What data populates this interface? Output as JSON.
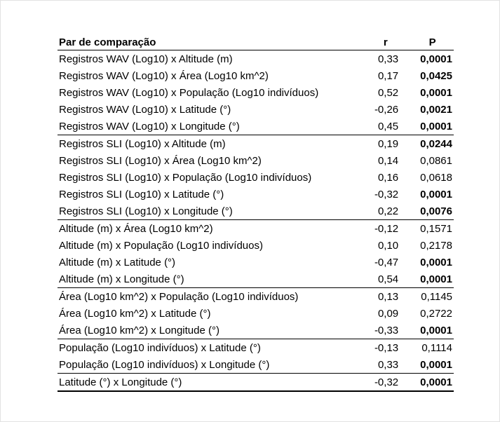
{
  "table": {
    "headers": {
      "pair": "Par de comparação",
      "r": "r",
      "p": "P"
    },
    "rows": [
      {
        "pair": "Registros WAV (Log10) x Altitude (m)",
        "r": "0,33",
        "p": "0,0001",
        "sig": true
      },
      {
        "pair": "Registros WAV (Log10) x Área (Log10 km^2)",
        "r": "0,17",
        "p": "0,0425",
        "sig": true
      },
      {
        "pair": "Registros WAV (Log10) x População (Log10 indivíduos)",
        "r": "0,52",
        "p": "0,0001",
        "sig": true
      },
      {
        "pair": "Registros WAV (Log10) x Latitude (°)",
        "r": "-0,26",
        "p": "0,0021",
        "sig": true
      },
      {
        "pair": "Registros WAV (Log10) x Longitude (°)",
        "r": "0,45",
        "p": "0,0001",
        "sig": true,
        "group_end": true
      },
      {
        "pair": "Registros SLI (Log10) x Altitude (m)",
        "r": "0,19",
        "p": "0,0244",
        "sig": true
      },
      {
        "pair": "Registros SLI (Log10) x Área (Log10 km^2)",
        "r": "0,14",
        "p": "0,0861",
        "sig": false
      },
      {
        "pair": "Registros SLI (Log10) x População (Log10 indivíduos)",
        "r": "0,16",
        "p": "0,0618",
        "sig": false
      },
      {
        "pair": "Registros SLI (Log10) x Latitude (°)",
        "r": "-0,32",
        "p": "0,0001",
        "sig": true
      },
      {
        "pair": "Registros SLI (Log10) x Longitude (°)",
        "r": "0,22",
        "p": "0,0076",
        "sig": true,
        "group_end": true
      },
      {
        "pair": "Altitude (m) x Área (Log10 km^2)",
        "r": "-0,12",
        "p": "0,1571",
        "sig": false
      },
      {
        "pair": "Altitude (m) x População (Log10 indivíduos)",
        "r": "0,10",
        "p": "0,2178",
        "sig": false
      },
      {
        "pair": "Altitude (m) x Latitude (°)",
        "r": "-0,47",
        "p": "0,0001",
        "sig": true
      },
      {
        "pair": "Altitude (m) x Longitude (°)",
        "r": "0,54",
        "p": "0,0001",
        "sig": true,
        "group_end": true
      },
      {
        "pair": "Área (Log10 km^2) x População (Log10 indivíduos)",
        "r": "0,13",
        "p": "0,1145",
        "sig": false
      },
      {
        "pair": "Área (Log10 km^2) x Latitude (°)",
        "r": "0,09",
        "p": "0,2722",
        "sig": false
      },
      {
        "pair": "Área (Log10 km^2) x Longitude (°)",
        "r": "-0,33",
        "p": "0,0001",
        "sig": true,
        "group_end": true
      },
      {
        "pair": "População (Log10 indivíduos) x Latitude (°)",
        "r": "-0,13",
        "p": "0,1114",
        "sig": false
      },
      {
        "pair": "População (Log10 indivíduos) x Longitude (°)",
        "r": "0,33",
        "p": "0,0001",
        "sig": true,
        "group_end": true
      },
      {
        "pair": "Latitude (°) x Longitude (°)",
        "r": "-0,32",
        "p": "0,0001",
        "sig": true,
        "last": true
      }
    ]
  }
}
